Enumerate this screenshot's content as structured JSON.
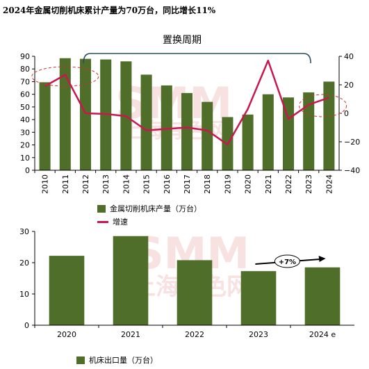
{
  "page": {
    "title": "2024年金属切削机床累计产量为70万台，同比增长11%"
  },
  "colors": {
    "bar": "#4e6e2a",
    "line": "#c8174e",
    "bracket": "#2d4e5f",
    "watermark": "#f1c9c9"
  },
  "watermark": {
    "text": "SMM",
    "subtext": "上海有色网"
  },
  "chart_data": [
    {
      "type": "bar",
      "title": "",
      "categories": [
        "2010",
        "2011",
        "2012",
        "2013",
        "2014",
        "2015",
        "2016",
        "2017",
        "2018",
        "2019",
        "2020",
        "2021",
        "2022",
        "2023",
        "2024"
      ],
      "series": [
        {
          "name": "金属切削机床产量（万台）",
          "type": "bar",
          "axis": "left",
          "values": [
            69.5,
            88.5,
            88.0,
            87.5,
            86.0,
            75.5,
            67.0,
            61.0,
            54.0,
            42.0,
            44.0,
            60.0,
            57.5,
            61.5,
            70.0
          ]
        },
        {
          "name": "增速",
          "type": "line",
          "axis": "right",
          "values": [
            19,
            27,
            0,
            -0.5,
            -2,
            -12,
            -11,
            -10,
            -12,
            -22,
            3,
            37,
            -4,
            6,
            11
          ]
        }
      ],
      "ylim_left": [
        0,
        90
      ],
      "ylim_right": [
        -40,
        40
      ],
      "yticks_left": [
        "0",
        "10",
        "20",
        "30",
        "40",
        "50",
        "60",
        "70",
        "80",
        "90"
      ],
      "yticks_right": [
        "−40",
        "−20",
        "0",
        "20",
        "40"
      ],
      "annotation": "置换周期",
      "grid": false,
      "legend": "bottom-left"
    },
    {
      "type": "bar",
      "title": "",
      "categories": [
        "2020",
        "2021",
        "2022",
        "2023",
        "2024 e"
      ],
      "series": [
        {
          "name": "机床出口量（万台）",
          "values": [
            22.2,
            28.5,
            20.8,
            17.3,
            18.5
          ]
        }
      ],
      "ylim": [
        0,
        30
      ],
      "yticks": [
        "0",
        "10",
        "20",
        "30"
      ],
      "annotation": "+7%",
      "grid": false,
      "legend": "bottom-left"
    }
  ]
}
